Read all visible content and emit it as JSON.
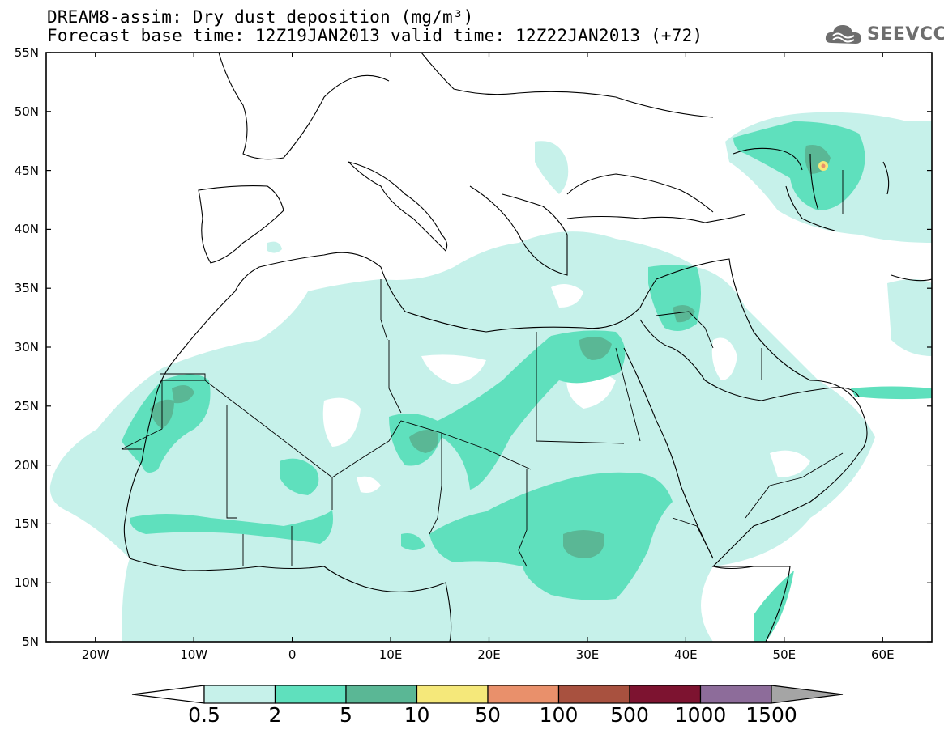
{
  "title_line1": "DREAM8-assim: Dry dust deposition (mg/m³)",
  "title_line2_base": "Forecast base time: 12Z19JAN2013",
  "title_line2_valid": "valid time: 12Z22JAN2013 (+72)",
  "logo_text": "SEEVCCC",
  "lat_labels": [
    "55N",
    "50N",
    "45N",
    "40N",
    "35N",
    "30N",
    "25N",
    "20N",
    "15N",
    "10N",
    "5N"
  ],
  "lon_labels": [
    "20W",
    "10W",
    "0",
    "10E",
    "20E",
    "30E",
    "40E",
    "50E",
    "60E"
  ],
  "colorbar": {
    "labels": [
      "0.5",
      "2",
      "5",
      "10",
      "50",
      "100",
      "500",
      "1000",
      "1500"
    ],
    "colors": [
      "#c6f1ea",
      "#5fe0bd",
      "#5ab795",
      "#f5e87a",
      "#e9906b",
      "#a8513f",
      "#7d1330",
      "#8d6c9a"
    ],
    "under_color": "#ffffff",
    "over_color": "#a5a5a5"
  },
  "map_extent": {
    "lon_min": -25,
    "lon_max": 65,
    "lat_min": 5,
    "lat_max": 55
  }
}
